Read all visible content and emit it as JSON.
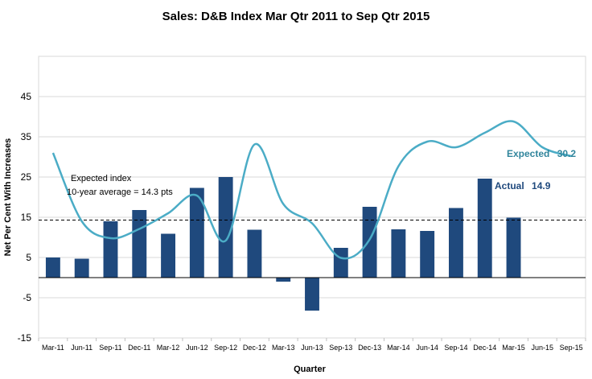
{
  "chart_data": {
    "type": "bar",
    "title": "Sales: D&B Index  Mar Qtr 2011 to Sep Qtr 2015",
    "xlabel": "Quarter",
    "ylabel": "Net Per Cent With Increases",
    "ylim": [
      -15,
      55
    ],
    "yticks": [
      -15,
      -5,
      5,
      15,
      25,
      35,
      45
    ],
    "grid": true,
    "categories": [
      "Mar-11",
      "Jun-11",
      "Sep-11",
      "Dec-11",
      "Mar-12",
      "Jun-12",
      "Sep-12",
      "Dec-12",
      "Mar-13",
      "Jun-13",
      "Sep-13",
      "Dec-13",
      "Mar-14",
      "Jun-14",
      "Sep-14",
      "Dec-14",
      "Mar-15",
      "Jun-15",
      "Sep-15"
    ],
    "series": [
      {
        "name": "Actual",
        "type": "bar",
        "color": "#1f497d",
        "values": [
          5.0,
          4.7,
          14.0,
          16.8,
          10.9,
          22.3,
          25.0,
          11.9,
          -1.0,
          -8.2,
          7.4,
          17.6,
          12.0,
          11.6,
          17.3,
          24.6,
          14.9,
          null,
          null
        ]
      },
      {
        "name": "Expected",
        "type": "line",
        "color": "#4bacc6",
        "values": [
          31.0,
          14.0,
          9.8,
          12.1,
          16.0,
          20.4,
          9.2,
          33.1,
          18.3,
          13.5,
          4.9,
          9.5,
          27.7,
          33.8,
          32.4,
          36.0,
          38.8,
          32.4,
          30.2
        ]
      }
    ],
    "reference_line": {
      "value": 14.3,
      "style": "dashed"
    },
    "annotations": {
      "expected_index_line1": "Expected index",
      "expected_index_line2": "10-year average = 14.3 pts",
      "expected_label": "Expected",
      "expected_value": "30.2",
      "actual_label": "Actual",
      "actual_value": "14.9"
    }
  }
}
